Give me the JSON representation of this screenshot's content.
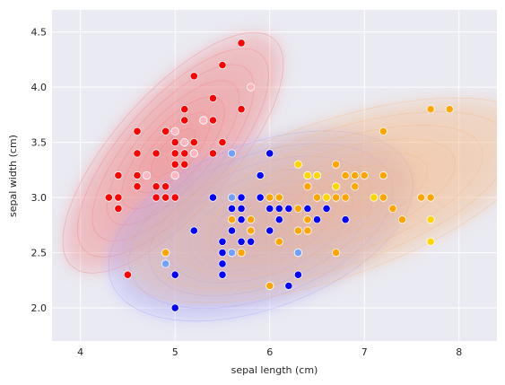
{
  "chart_data": {
    "type": "scatter",
    "title": "",
    "xlabel": "sepal length (cm)",
    "ylabel": "sepal width (cm)",
    "xlim": [
      3.7,
      8.4
    ],
    "ylim": [
      1.7,
      4.7
    ],
    "xticks": [
      4,
      5,
      6,
      7,
      8
    ],
    "xtick_labels": [
      "4",
      "5",
      "6",
      "7",
      "8"
    ],
    "yticks": [
      2.0,
      2.5,
      3.0,
      3.5,
      4.0,
      4.5
    ],
    "ytick_labels": [
      "2.0",
      "2.5",
      "3.0",
      "3.5",
      "4.0",
      "4.5"
    ],
    "grid": true,
    "background": "#eaeaf2",
    "overlays": [
      "kernel density contours per cluster"
    ],
    "series": [
      {
        "color": "#ff0000",
        "kde_color": "#f08080",
        "points": [
          [
            4.3,
            3.0
          ],
          [
            4.4,
            2.9
          ],
          [
            4.4,
            3.0
          ],
          [
            4.4,
            3.2
          ],
          [
            4.5,
            2.3
          ],
          [
            4.6,
            3.1
          ],
          [
            4.6,
            3.2
          ],
          [
            4.6,
            3.4
          ],
          [
            4.6,
            3.6
          ],
          [
            4.7,
            3.2
          ],
          [
            4.8,
            3.0
          ],
          [
            4.8,
            3.1
          ],
          [
            4.8,
            3.4
          ],
          [
            4.9,
            3.0
          ],
          [
            4.9,
            3.1
          ],
          [
            4.9,
            3.6
          ],
          [
            5.0,
            3.0
          ],
          [
            5.0,
            3.2
          ],
          [
            5.0,
            3.3
          ],
          [
            5.0,
            3.4
          ],
          [
            5.0,
            3.5
          ],
          [
            5.0,
            3.6
          ],
          [
            5.1,
            3.3
          ],
          [
            5.1,
            3.4
          ],
          [
            5.1,
            3.5
          ],
          [
            5.1,
            3.7
          ],
          [
            5.1,
            3.8
          ],
          [
            5.2,
            3.4
          ],
          [
            5.2,
            3.5
          ],
          [
            5.2,
            4.1
          ],
          [
            5.3,
            3.7
          ],
          [
            5.4,
            3.4
          ],
          [
            5.4,
            3.7
          ],
          [
            5.4,
            3.9
          ],
          [
            5.5,
            3.5
          ],
          [
            5.5,
            4.2
          ],
          [
            5.7,
            3.8
          ],
          [
            5.7,
            4.4
          ]
        ]
      },
      {
        "color": "#ffb6c1",
        "points": [
          [
            4.7,
            3.2
          ],
          [
            5.0,
            3.2
          ],
          [
            5.0,
            3.6
          ],
          [
            5.1,
            3.5
          ],
          [
            5.2,
            3.4
          ],
          [
            5.3,
            3.7
          ],
          [
            5.8,
            4.0
          ]
        ]
      },
      {
        "color": "#0000ff",
        "kde_color": "#a0a0ff",
        "points": [
          [
            4.9,
            2.5
          ],
          [
            5.0,
            2.0
          ],
          [
            5.0,
            2.3
          ],
          [
            5.2,
            2.7
          ],
          [
            5.4,
            3.0
          ],
          [
            5.5,
            2.3
          ],
          [
            5.5,
            2.4
          ],
          [
            5.5,
            2.5
          ],
          [
            5.5,
            2.6
          ],
          [
            5.6,
            2.7
          ],
          [
            5.6,
            2.9
          ],
          [
            5.6,
            3.0
          ],
          [
            5.7,
            2.6
          ],
          [
            5.7,
            2.8
          ],
          [
            5.7,
            2.9
          ],
          [
            5.7,
            3.0
          ],
          [
            5.8,
            2.6
          ],
          [
            5.8,
            2.7
          ],
          [
            5.9,
            3.0
          ],
          [
            5.9,
            3.2
          ],
          [
            6.0,
            2.2
          ],
          [
            6.0,
            2.7
          ],
          [
            6.0,
            2.9
          ],
          [
            6.0,
            3.4
          ],
          [
            6.1,
            2.8
          ],
          [
            6.1,
            2.9
          ],
          [
            6.1,
            3.0
          ],
          [
            6.2,
            2.2
          ],
          [
            6.2,
            2.9
          ],
          [
            6.3,
            2.3
          ],
          [
            6.3,
            2.5
          ],
          [
            6.4,
            2.9
          ],
          [
            6.5,
            2.8
          ],
          [
            6.6,
            2.9
          ],
          [
            6.6,
            3.0
          ],
          [
            6.7,
            3.1
          ],
          [
            6.8,
            2.8
          ],
          [
            7.0,
            3.2
          ]
        ]
      },
      {
        "color": "#6f9fff",
        "points": [
          [
            4.9,
            2.4
          ],
          [
            5.6,
            2.5
          ],
          [
            5.6,
            2.8
          ],
          [
            5.6,
            3.0
          ],
          [
            5.6,
            3.4
          ],
          [
            6.3,
            2.5
          ]
        ]
      },
      {
        "color": "#ffa500",
        "kde_color": "#f4b880",
        "points": [
          [
            4.9,
            2.5
          ],
          [
            5.6,
            2.8
          ],
          [
            5.7,
            2.5
          ],
          [
            5.8,
            2.7
          ],
          [
            5.8,
            2.8
          ],
          [
            6.0,
            2.2
          ],
          [
            6.0,
            3.0
          ],
          [
            6.1,
            2.6
          ],
          [
            6.1,
            3.0
          ],
          [
            6.3,
            2.7
          ],
          [
            6.3,
            2.9
          ],
          [
            6.4,
            2.7
          ],
          [
            6.4,
            2.8
          ],
          [
            6.4,
            3.1
          ],
          [
            6.4,
            3.2
          ],
          [
            6.5,
            3.0
          ],
          [
            6.5,
            3.2
          ],
          [
            6.6,
            3.0
          ],
          [
            6.7,
            2.5
          ],
          [
            6.7,
            3.0
          ],
          [
            6.7,
            3.3
          ],
          [
            6.8,
            3.0
          ],
          [
            6.8,
            3.2
          ],
          [
            6.9,
            3.1
          ],
          [
            6.9,
            3.2
          ],
          [
            7.0,
            3.2
          ],
          [
            7.2,
            3.0
          ],
          [
            7.2,
            3.2
          ],
          [
            7.2,
            3.6
          ],
          [
            7.3,
            2.9
          ],
          [
            7.4,
            2.8
          ],
          [
            7.6,
            3.0
          ],
          [
            7.7,
            2.8
          ],
          [
            7.7,
            3.0
          ],
          [
            7.7,
            3.8
          ],
          [
            7.9,
            3.8
          ]
        ]
      },
      {
        "color": "#ffd500",
        "points": [
          [
            6.3,
            3.3
          ],
          [
            6.4,
            3.2
          ],
          [
            6.5,
            3.2
          ],
          [
            6.6,
            3.0
          ],
          [
            6.7,
            3.1
          ],
          [
            7.1,
            3.0
          ],
          [
            7.7,
            2.6
          ],
          [
            7.7,
            2.8
          ]
        ]
      }
    ]
  }
}
